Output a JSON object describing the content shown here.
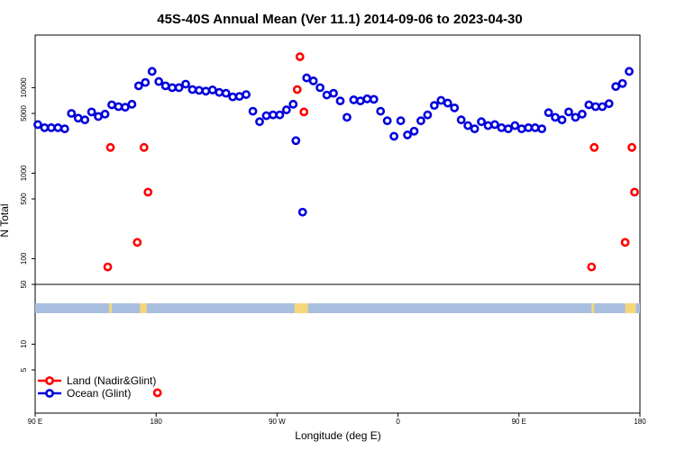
{
  "chart_data": {
    "type": "scatter",
    "title": "45S-40S Annual Mean (Ver 11.1)   2014-09-06 to 2023-04-30",
    "xlabel": "Longitude (deg E)",
    "ylabel": "N Total",
    "y_scale": "log",
    "x_ticks": [
      {
        "value": 90,
        "label": "90 E"
      },
      {
        "value": 180,
        "label": "180"
      },
      {
        "value": 270,
        "label": "90 W"
      },
      {
        "value": 360,
        "label": "0"
      },
      {
        "value": 450,
        "label": "90 E"
      },
      {
        "value": 540,
        "label": "180"
      }
    ],
    "y_ticks": [
      {
        "value": 5,
        "label": "5"
      },
      {
        "value": 10,
        "label": "10"
      },
      {
        "value": 50,
        "label": "50"
      },
      {
        "value": 100,
        "label": "100"
      },
      {
        "value": 500,
        "label": "500"
      },
      {
        "value": 1000,
        "label": "1000"
      },
      {
        "value": 5000,
        "label": "5000"
      },
      {
        "value": 10000,
        "label": "10000"
      }
    ],
    "legend": {
      "placement": "bottom-left",
      "entries": [
        {
          "label": "Land (Nadir&Glint)",
          "color": "#ff0000"
        },
        {
          "label": "Ocean (Glint)",
          "color": "#0000dd"
        }
      ]
    },
    "land_strip": {
      "ocean_color": "#a9bfdf",
      "land_color": "#f5d77a",
      "land_spans": [
        [
          145,
          147
        ],
        [
          168,
          173
        ],
        [
          283,
          293
        ],
        [
          504,
          506
        ],
        [
          529,
          537
        ]
      ]
    },
    "series": [
      {
        "name": "Land (Nadir&Glint)",
        "color": "#ff0000",
        "points": [
          [
            144,
            80
          ],
          [
            146,
            2000
          ],
          [
            166,
            155
          ],
          [
            171,
            2000
          ],
          [
            174,
            600
          ],
          [
            181,
            2.7
          ],
          [
            285,
            9500
          ],
          [
            287,
            23000
          ],
          [
            290,
            5200
          ],
          [
            504,
            80
          ],
          [
            506,
            2000
          ],
          [
            529,
            155
          ],
          [
            534,
            2000
          ],
          [
            536,
            600
          ]
        ]
      },
      {
        "name": "Ocean (Glint)",
        "color": "#0000dd",
        "points": [
          [
            92,
            3700
          ],
          [
            97,
            3400
          ],
          [
            102,
            3400
          ],
          [
            107,
            3400
          ],
          [
            112,
            3300
          ],
          [
            117,
            5000
          ],
          [
            122,
            4400
          ],
          [
            127,
            4200
          ],
          [
            132,
            5200
          ],
          [
            137,
            4600
          ],
          [
            142,
            4900
          ],
          [
            147,
            6300
          ],
          [
            152,
            6000
          ],
          [
            157,
            5900
          ],
          [
            162,
            6400
          ],
          [
            167,
            10500
          ],
          [
            172,
            11500
          ],
          [
            177,
            15500
          ],
          [
            182,
            11800
          ],
          [
            187,
            10500
          ],
          [
            192,
            10000
          ],
          [
            197,
            10000
          ],
          [
            202,
            11000
          ],
          [
            207,
            9500
          ],
          [
            212,
            9300
          ],
          [
            217,
            9100
          ],
          [
            222,
            9400
          ],
          [
            227,
            8800
          ],
          [
            232,
            8600
          ],
          [
            237,
            7800
          ],
          [
            242,
            7900
          ],
          [
            247,
            8300
          ],
          [
            252,
            5300
          ],
          [
            257,
            4000
          ],
          [
            262,
            4700
          ],
          [
            267,
            4800
          ],
          [
            272,
            4800
          ],
          [
            277,
            5500
          ],
          [
            282,
            6400
          ],
          [
            284,
            2400
          ],
          [
            289,
            350
          ],
          [
            292,
            13000
          ],
          [
            297,
            12000
          ],
          [
            302,
            10000
          ],
          [
            307,
            8200
          ],
          [
            312,
            8600
          ],
          [
            317,
            7000
          ],
          [
            322,
            4500
          ],
          [
            327,
            7200
          ],
          [
            332,
            7000
          ],
          [
            337,
            7400
          ],
          [
            342,
            7300
          ],
          [
            347,
            5300
          ],
          [
            352,
            4100
          ],
          [
            357,
            2700
          ],
          [
            362,
            4100
          ],
          [
            367,
            2800
          ],
          [
            372,
            3100
          ],
          [
            377,
            4100
          ],
          [
            382,
            4800
          ],
          [
            387,
            6200
          ],
          [
            392,
            7100
          ],
          [
            397,
            6600
          ],
          [
            402,
            5800
          ],
          [
            407,
            4200
          ],
          [
            412,
            3600
          ],
          [
            417,
            3300
          ],
          [
            422,
            4000
          ],
          [
            427,
            3600
          ],
          [
            432,
            3700
          ],
          [
            437,
            3400
          ],
          [
            442,
            3300
          ],
          [
            447,
            3600
          ],
          [
            452,
            3300
          ],
          [
            457,
            3400
          ],
          [
            462,
            3400
          ],
          [
            467,
            3300
          ],
          [
            472,
            5100
          ],
          [
            477,
            4500
          ],
          [
            482,
            4200
          ],
          [
            487,
            5200
          ],
          [
            492,
            4500
          ],
          [
            497,
            4900
          ],
          [
            502,
            6300
          ],
          [
            507,
            6000
          ],
          [
            512,
            6000
          ],
          [
            517,
            6500
          ],
          [
            522,
            10300
          ],
          [
            527,
            11200
          ],
          [
            532,
            15500
          ]
        ]
      }
    ]
  }
}
